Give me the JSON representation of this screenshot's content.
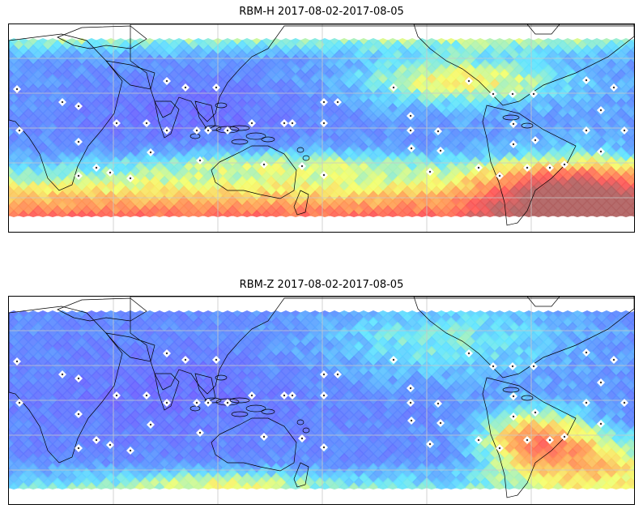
{
  "figure": {
    "panels": [
      {
        "title": "RBM-H 2017-08-02-2017-08-05",
        "field": "rbm_h"
      },
      {
        "title": "RBM-Z 2017-08-02-2017-08-05",
        "field": "rbm_z"
      }
    ],
    "colormap": [
      "#6a5cff",
      "#5a8cff",
      "#5fe4ff",
      "#f5ff6a",
      "#ff9e55",
      "#ff5555",
      "#b06060"
    ],
    "land_color": "#ffffff",
    "coast_color": "#000000",
    "grid_color": "#c8c8c8",
    "station_color": "#ffffff",
    "icons": {
      "station": "station-marker-icon",
      "coastline": "coastline-icon"
    }
  }
}
